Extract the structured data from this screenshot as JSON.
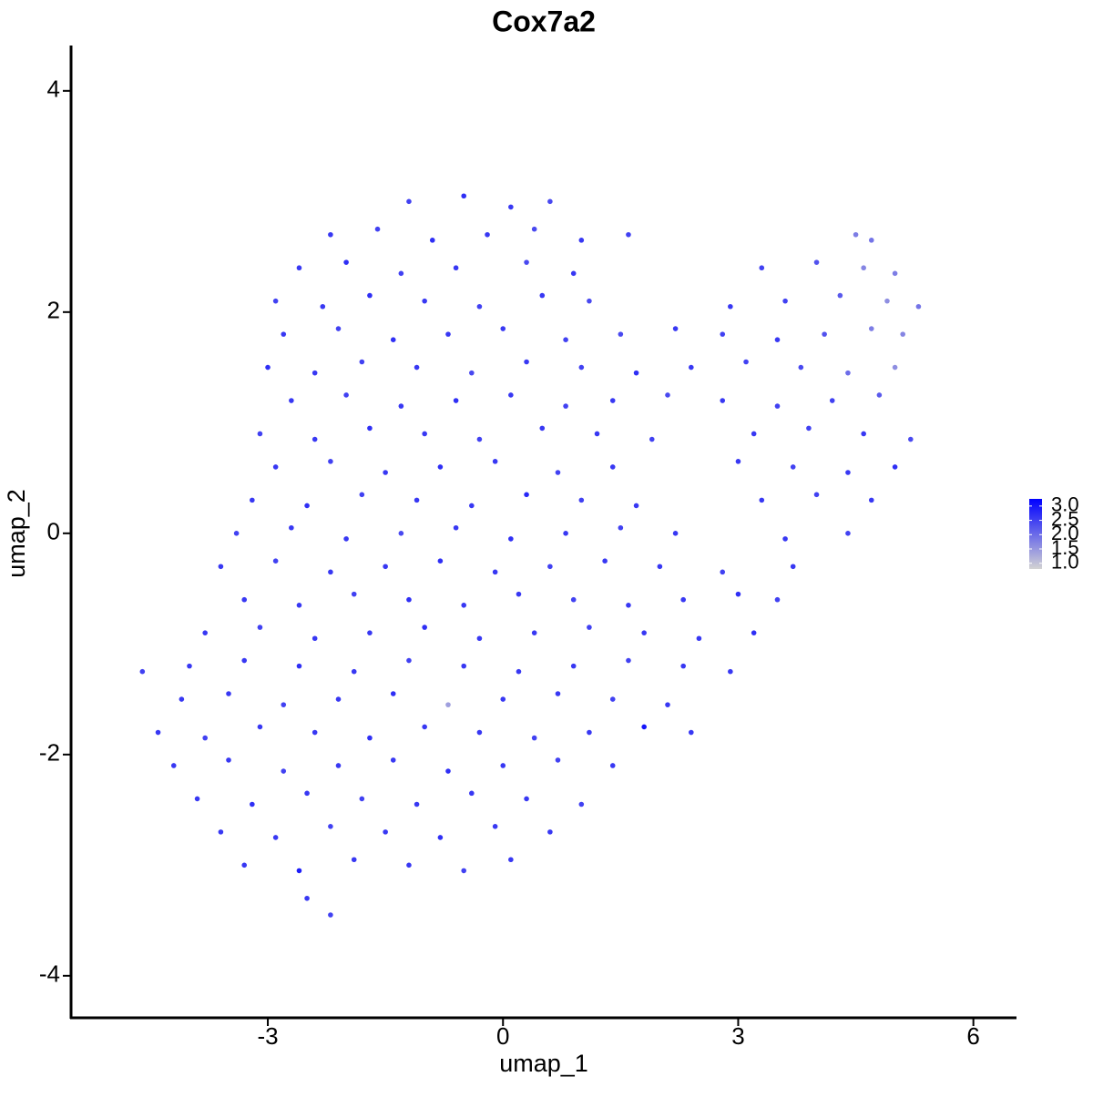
{
  "chart_data": {
    "type": "scatter",
    "title": "Cox7a2",
    "xlabel": "umap_1",
    "ylabel": "umap_2",
    "xlim": [
      -5.51,
      6.55
    ],
    "ylim": [
      -4.38,
      4.41
    ],
    "xticks": [
      -3,
      0,
      3,
      6
    ],
    "yticks": [
      -4,
      -2,
      0,
      2,
      4
    ],
    "low_color": "#d3d3d3",
    "high_color": "#0000ff",
    "clim": [
      0.8,
      3.25
    ],
    "cticks": [
      {
        "value": 1,
        "label": "1.0"
      },
      {
        "value": 1.5,
        "label": "1.5"
      },
      {
        "value": 2,
        "label": "2.0"
      },
      {
        "value": 2.5,
        "label": "2.5"
      },
      {
        "value": 3,
        "label": "3.0"
      }
    ],
    "x": [
      -1.2,
      -0.5,
      0.1,
      0.6,
      -2.2,
      -1.6,
      -0.9,
      -0.2,
      0.4,
      1.0,
      1.6,
      4.5,
      4.7,
      -2.6,
      -2.0,
      -1.3,
      -0.6,
      0.3,
      0.9,
      3.3,
      4.0,
      4.6,
      5.0,
      -2.9,
      -2.3,
      -1.7,
      -1.0,
      -0.3,
      0.5,
      1.1,
      2.9,
      3.6,
      4.3,
      4.9,
      5.3,
      -2.8,
      -2.1,
      -1.4,
      -0.7,
      0.0,
      0.8,
      1.5,
      2.2,
      2.8,
      3.5,
      4.1,
      4.7,
      5.1,
      -3.0,
      -2.4,
      -1.8,
      -1.1,
      -0.4,
      0.3,
      1.0,
      1.7,
      2.4,
      3.1,
      3.8,
      4.4,
      5.0,
      -2.7,
      -2.0,
      -1.3,
      -0.6,
      0.1,
      0.8,
      1.4,
      2.1,
      2.8,
      3.5,
      4.2,
      4.8,
      -3.1,
      -2.4,
      -1.7,
      -1.0,
      -0.3,
      0.5,
      1.2,
      1.9,
      3.2,
      3.9,
      4.6,
      5.2,
      -2.9,
      -2.2,
      -1.5,
      -0.8,
      -0.1,
      0.7,
      1.4,
      3.0,
      3.7,
      4.4,
      5.0,
      -3.2,
      -2.5,
      -1.8,
      -1.1,
      -0.4,
      0.3,
      1.0,
      1.7,
      3.3,
      4.0,
      4.7,
      -3.4,
      -2.7,
      -2.0,
      -1.3,
      -0.6,
      0.1,
      0.8,
      1.5,
      2.2,
      3.6,
      4.4,
      -3.6,
      -2.9,
      -2.2,
      -1.5,
      -0.8,
      -0.1,
      0.6,
      1.3,
      2.0,
      2.8,
      3.7,
      -3.3,
      -2.6,
      -1.9,
      -1.2,
      -0.5,
      0.2,
      0.9,
      1.6,
      2.3,
      3.0,
      3.5,
      -3.8,
      -3.1,
      -2.4,
      -1.7,
      -1.0,
      -0.3,
      0.4,
      1.1,
      1.8,
      2.5,
      3.2,
      -4.6,
      -4.0,
      -3.3,
      -2.6,
      -1.9,
      -1.2,
      -0.5,
      0.2,
      0.9,
      1.6,
      2.3,
      2.9,
      -4.1,
      -3.5,
      -2.8,
      -2.1,
      -1.4,
      -0.7,
      0.0,
      0.7,
      1.4,
      2.1,
      -4.4,
      -3.8,
      -3.1,
      -2.4,
      -1.7,
      -1.0,
      -0.3,
      0.4,
      1.1,
      1.8,
      2.4,
      -4.2,
      -3.5,
      -2.8,
      -2.1,
      -1.4,
      -0.7,
      0.0,
      0.7,
      1.4,
      -3.9,
      -3.2,
      -2.5,
      -1.8,
      -1.1,
      -0.4,
      0.3,
      1.0,
      -3.6,
      -2.9,
      -2.2,
      -1.5,
      -0.8,
      -0.1,
      0.6,
      -3.3,
      -2.6,
      -1.9,
      -1.2,
      -0.5,
      0.1,
      -2.5,
      -2.2
    ],
    "values": [
      3.0,
      3.05,
      2.95,
      3.0,
      2.7,
      2.75,
      2.65,
      2.7,
      2.75,
      2.65,
      2.7,
      2.7,
      2.65,
      2.4,
      2.45,
      2.35,
      2.4,
      2.45,
      2.35,
      2.4,
      2.45,
      2.4,
      2.35,
      2.1,
      2.05,
      2.15,
      2.1,
      2.05,
      2.15,
      2.1,
      2.05,
      2.1,
      2.15,
      2.1,
      2.05,
      1.8,
      1.85,
      1.75,
      1.8,
      1.85,
      1.75,
      1.8,
      1.85,
      1.8,
      1.75,
      1.8,
      1.85,
      1.8,
      1.5,
      1.45,
      1.55,
      1.5,
      1.45,
      1.55,
      1.5,
      1.45,
      1.5,
      1.55,
      1.5,
      1.45,
      1.5,
      1.2,
      1.25,
      1.15,
      1.2,
      1.25,
      1.15,
      1.2,
      1.25,
      1.2,
      1.15,
      1.2,
      1.25,
      0.9,
      0.85,
      0.95,
      0.9,
      0.85,
      0.95,
      0.9,
      0.85,
      0.9,
      0.95,
      0.9,
      0.85,
      0.6,
      0.65,
      0.55,
      0.6,
      0.65,
      0.55,
      0.6,
      0.65,
      0.6,
      0.55,
      0.6,
      0.3,
      0.25,
      0.35,
      0.3,
      0.25,
      0.35,
      0.3,
      0.25,
      0.3,
      0.35,
      0.3,
      0.0,
      0.05,
      -0.05,
      0.0,
      0.05,
      -0.05,
      0.0,
      0.05,
      0.0,
      -0.05,
      0.0,
      -0.3,
      -0.25,
      -0.35,
      -0.3,
      -0.25,
      -0.35,
      -0.3,
      -0.25,
      -0.3,
      -0.35,
      -0.3,
      -0.6,
      -0.65,
      -0.55,
      -0.6,
      -0.65,
      -0.55,
      -0.6,
      -0.65,
      -0.6,
      -0.55,
      -0.6,
      -0.9,
      -0.85,
      -0.95,
      -0.9,
      -0.85,
      -0.95,
      -0.9,
      -0.85,
      -0.9,
      -0.95,
      -0.9,
      -1.25,
      -1.2,
      -1.15,
      -1.2,
      -1.25,
      -1.15,
      -1.2,
      -1.25,
      -1.2,
      -1.15,
      -1.2,
      -1.25,
      -1.5,
      -1.45,
      -1.55,
      -1.5,
      -1.45,
      -1.55,
      -1.5,
      -1.45,
      -1.5,
      -1.55,
      -1.8,
      -1.85,
      -1.75,
      -1.8,
      -1.85,
      -1.75,
      -1.8,
      -1.85,
      -1.8,
      -1.75,
      -1.8,
      -2.1,
      -2.05,
      -2.15,
      -2.1,
      -2.05,
      -2.15,
      -2.1,
      -2.05,
      -2.1,
      -2.4,
      -2.45,
      -2.35,
      -2.4,
      -2.45,
      -2.35,
      -2.4,
      -2.45,
      -2.7,
      -2.75,
      -2.65,
      -2.7,
      -2.75,
      -2.65,
      -2.7,
      -3.0,
      -3.05,
      -2.95,
      -3.0,
      -3.05,
      -2.95,
      -3.3,
      -3.45
    ],
    "expression": [
      2.5,
      2.7,
      2.6,
      2.4,
      2.6,
      2.5,
      2.7,
      2.6,
      2.4,
      2.6,
      2.5,
      1.8,
      1.9,
      2.6,
      2.7,
      2.5,
      2.6,
      2.4,
      2.6,
      2.5,
      2.3,
      1.7,
      1.8,
      2.5,
      2.6,
      2.7,
      2.6,
      2.5,
      2.6,
      2.4,
      2.6,
      2.5,
      2.2,
      1.6,
      1.9,
      2.6,
      2.5,
      2.7,
      2.6,
      2.6,
      2.5,
      2.4,
      2.6,
      2.5,
      2.6,
      2.3,
      1.8,
      1.7,
      2.7,
      2.6,
      2.5,
      2.6,
      2.4,
      2.6,
      2.5,
      2.7,
      2.6,
      2.5,
      2.4,
      2.0,
      1.6,
      2.6,
      2.5,
      2.6,
      2.7,
      2.6,
      2.5,
      2.6,
      2.4,
      2.6,
      2.5,
      2.5,
      2.2,
      2.5,
      2.6,
      2.7,
      2.6,
      2.5,
      2.6,
      2.6,
      2.5,
      2.6,
      2.5,
      2.6,
      2.4,
      2.6,
      2.5,
      2.6,
      2.7,
      2.6,
      2.5,
      2.6,
      2.6,
      2.5,
      2.6,
      2.7,
      2.6,
      2.7,
      2.5,
      2.6,
      2.6,
      2.8,
      2.5,
      2.6,
      2.6,
      2.5,
      2.6,
      2.5,
      2.6,
      2.6,
      2.4,
      2.6,
      2.7,
      2.6,
      2.5,
      2.6,
      2.6,
      2.5,
      2.6,
      2.5,
      2.6,
      2.6,
      2.7,
      2.6,
      2.5,
      2.6,
      2.6,
      2.5,
      2.6,
      2.6,
      2.6,
      2.5,
      2.7,
      2.6,
      2.6,
      2.5,
      2.6,
      2.6,
      2.7,
      2.5,
      2.6,
      2.5,
      2.6,
      2.6,
      2.7,
      2.6,
      2.6,
      2.5,
      2.6,
      2.6,
      2.7,
      2.5,
      2.6,
      2.6,
      2.7,
      2.6,
      2.5,
      2.6,
      2.6,
      2.6,
      2.5,
      2.6,
      2.6,
      2.6,
      2.6,
      2.5,
      2.6,
      2.7,
      1.4,
      2.6,
      2.6,
      2.5,
      2.6,
      2.6,
      2.5,
      2.6,
      2.6,
      2.7,
      2.6,
      2.6,
      2.5,
      2.6,
      3.0,
      2.6,
      2.6,
      2.6,
      2.5,
      2.6,
      2.6,
      2.7,
      2.6,
      2.5,
      2.6,
      2.6,
      2.7,
      2.6,
      2.5,
      2.6,
      2.6,
      2.6,
      2.5,
      2.6,
      2.6,
      2.5,
      2.6,
      2.7,
      2.6,
      2.6,
      2.6,
      2.9,
      2.6,
      2.6,
      2.5,
      2.6,
      2.6,
      2.5
    ]
  }
}
